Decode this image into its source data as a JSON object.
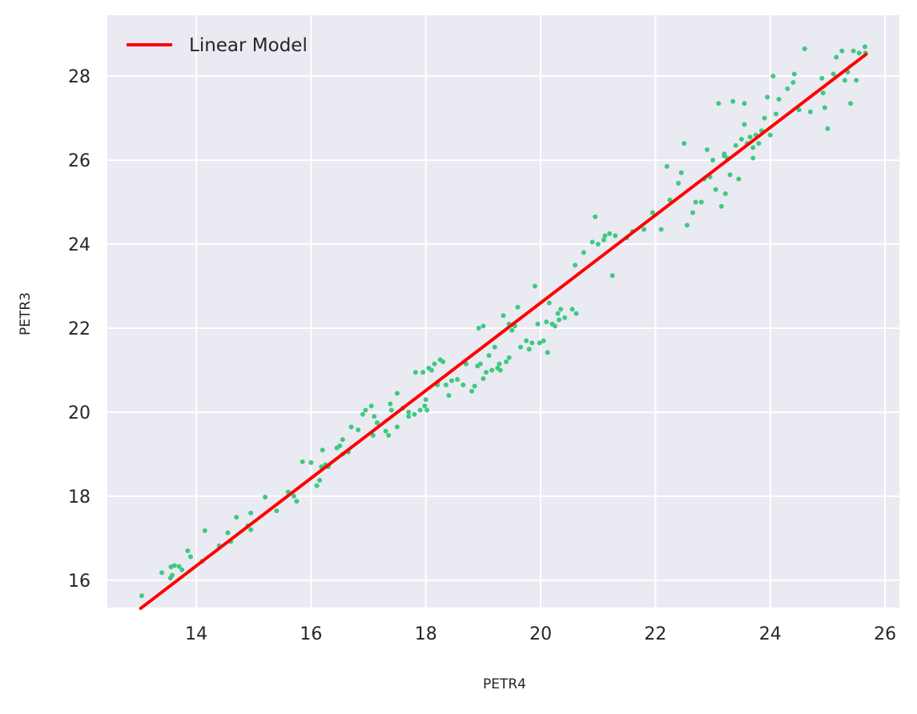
{
  "chart_data": {
    "type": "scatter",
    "xlabel": "PETR4",
    "ylabel": "PETR3",
    "xlim": [
      12.45,
      26.25
    ],
    "ylim": [
      15.35,
      29.45
    ],
    "xticks": [
      14,
      16,
      18,
      20,
      22,
      24,
      26
    ],
    "yticks": [
      16,
      18,
      20,
      22,
      24,
      26,
      28
    ],
    "grid": true,
    "legend_position": "top-left",
    "colors": {
      "background": "#eaeaf2",
      "grid": "#ffffff",
      "points": "#3ec982",
      "line": "#ff0000"
    },
    "line": {
      "name": "Linear Model",
      "x": [
        13.03,
        25.67
      ],
      "y": [
        15.33,
        28.52
      ]
    },
    "points": [
      [
        13.05,
        15.63
      ],
      [
        13.4,
        16.18
      ],
      [
        13.55,
        16.05
      ],
      [
        13.58,
        16.12
      ],
      [
        13.56,
        16.32
      ],
      [
        13.62,
        16.35
      ],
      [
        13.7,
        16.33
      ],
      [
        13.75,
        16.25
      ],
      [
        13.85,
        16.7
      ],
      [
        13.9,
        16.56
      ],
      [
        14.15,
        17.18
      ],
      [
        14.1,
        16.45
      ],
      [
        14.4,
        16.82
      ],
      [
        14.55,
        17.13
      ],
      [
        14.6,
        16.92
      ],
      [
        14.7,
        17.5
      ],
      [
        14.9,
        17.3
      ],
      [
        14.95,
        17.6
      ],
      [
        14.95,
        17.2
      ],
      [
        15.2,
        17.98
      ],
      [
        15.4,
        17.65
      ],
      [
        15.6,
        18.1
      ],
      [
        15.7,
        18.0
      ],
      [
        15.75,
        17.88
      ],
      [
        15.85,
        18.82
      ],
      [
        16.0,
        18.8
      ],
      [
        16.1,
        18.25
      ],
      [
        16.15,
        18.38
      ],
      [
        16.18,
        18.7
      ],
      [
        16.2,
        19.1
      ],
      [
        16.25,
        18.75
      ],
      [
        16.3,
        18.7
      ],
      [
        16.45,
        19.15
      ],
      [
        16.5,
        19.2
      ],
      [
        16.55,
        19.35
      ],
      [
        16.55,
        19.0
      ],
      [
        16.65,
        19.05
      ],
      [
        16.7,
        19.65
      ],
      [
        16.82,
        19.58
      ],
      [
        16.9,
        19.95
      ],
      [
        16.95,
        20.05
      ],
      [
        17.05,
        20.15
      ],
      [
        17.08,
        19.45
      ],
      [
        17.1,
        19.9
      ],
      [
        17.15,
        19.75
      ],
      [
        17.3,
        19.55
      ],
      [
        17.35,
        19.45
      ],
      [
        17.38,
        20.2
      ],
      [
        17.4,
        20.05
      ],
      [
        17.5,
        20.45
      ],
      [
        17.5,
        19.65
      ],
      [
        17.6,
        20.1
      ],
      [
        17.7,
        19.9
      ],
      [
        17.8,
        19.95
      ],
      [
        17.82,
        20.95
      ],
      [
        17.9,
        20.05
      ],
      [
        17.95,
        20.95
      ],
      [
        17.98,
        20.15
      ],
      [
        18.0,
        20.3
      ],
      [
        18.02,
        20.05
      ],
      [
        18.05,
        21.05
      ],
      [
        18.1,
        21.0
      ],
      [
        18.15,
        21.15
      ],
      [
        18.2,
        20.7
      ],
      [
        18.25,
        21.25
      ],
      [
        18.3,
        21.2
      ],
      [
        18.35,
        20.65
      ],
      [
        18.4,
        20.4
      ],
      [
        18.45,
        20.75
      ],
      [
        18.55,
        20.78
      ],
      [
        18.65,
        20.65
      ],
      [
        18.7,
        21.15
      ],
      [
        18.8,
        20.5
      ],
      [
        18.85,
        20.62
      ],
      [
        18.9,
        21.1
      ],
      [
        18.92,
        22.0
      ],
      [
        18.95,
        21.15
      ],
      [
        19.0,
        20.8
      ],
      [
        19.0,
        22.05
      ],
      [
        19.05,
        20.95
      ],
      [
        19.1,
        21.35
      ],
      [
        19.15,
        21.0
      ],
      [
        19.2,
        21.55
      ],
      [
        19.25,
        21.05
      ],
      [
        19.28,
        21.15
      ],
      [
        19.3,
        21.0
      ],
      [
        19.35,
        22.3
      ],
      [
        19.4,
        21.2
      ],
      [
        19.45,
        21.3
      ],
      [
        19.45,
        22.1
      ],
      [
        19.5,
        21.95
      ],
      [
        19.55,
        22.05
      ],
      [
        19.65,
        21.55
      ],
      [
        19.75,
        21.7
      ],
      [
        19.8,
        21.5
      ],
      [
        19.85,
        21.65
      ],
      [
        19.9,
        23.0
      ],
      [
        19.95,
        22.1
      ],
      [
        19.98,
        21.65
      ],
      [
        20.05,
        21.7
      ],
      [
        20.1,
        22.15
      ],
      [
        20.12,
        21.42
      ],
      [
        20.15,
        22.6
      ],
      [
        20.2,
        22.1
      ],
      [
        20.25,
        22.05
      ],
      [
        20.3,
        22.35
      ],
      [
        20.32,
        22.2
      ],
      [
        20.35,
        22.45
      ],
      [
        20.42,
        22.25
      ],
      [
        20.55,
        22.45
      ],
      [
        20.6,
        23.5
      ],
      [
        20.62,
        22.35
      ],
      [
        20.75,
        23.8
      ],
      [
        20.9,
        24.05
      ],
      [
        20.95,
        24.65
      ],
      [
        21.1,
        24.1
      ],
      [
        21.12,
        24.2
      ],
      [
        21.2,
        24.25
      ],
      [
        21.25,
        23.25
      ],
      [
        21.3,
        24.2
      ],
      [
        21.5,
        24.15
      ],
      [
        21.6,
        24.3
      ],
      [
        21.8,
        24.35
      ],
      [
        21.95,
        24.75
      ],
      [
        22.1,
        24.35
      ],
      [
        22.2,
        25.85
      ],
      [
        22.25,
        25.05
      ],
      [
        22.4,
        25.45
      ],
      [
        22.5,
        26.4
      ],
      [
        22.55,
        24.45
      ],
      [
        22.65,
        24.75
      ],
      [
        22.7,
        25.0
      ],
      [
        22.8,
        25.0
      ],
      [
        22.85,
        25.55
      ],
      [
        22.9,
        26.25
      ],
      [
        22.95,
        25.6
      ],
      [
        23.0,
        26.0
      ],
      [
        23.05,
        25.3
      ],
      [
        23.1,
        27.35
      ],
      [
        23.15,
        24.9
      ],
      [
        23.2,
        26.15
      ],
      [
        23.22,
        25.2
      ],
      [
        23.25,
        26.05
      ],
      [
        23.3,
        25.65
      ],
      [
        23.35,
        27.4
      ],
      [
        23.4,
        26.35
      ],
      [
        23.45,
        25.55
      ],
      [
        23.5,
        26.5
      ],
      [
        23.55,
        26.85
      ],
      [
        23.55,
        27.35
      ],
      [
        23.6,
        26.4
      ],
      [
        23.65,
        26.55
      ],
      [
        23.7,
        26.3
      ],
      [
        23.75,
        26.6
      ],
      [
        23.8,
        26.4
      ],
      [
        23.85,
        26.7
      ],
      [
        23.9,
        27.0
      ],
      [
        23.95,
        27.5
      ],
      [
        24.0,
        26.6
      ],
      [
        24.05,
        28.0
      ],
      [
        24.1,
        27.1
      ],
      [
        24.15,
        27.45
      ],
      [
        24.4,
        27.85
      ],
      [
        24.42,
        28.05
      ],
      [
        24.5,
        27.2
      ],
      [
        24.6,
        28.65
      ],
      [
        24.7,
        27.15
      ],
      [
        24.9,
        27.95
      ],
      [
        24.92,
        27.6
      ],
      [
        24.95,
        27.25
      ],
      [
        25.0,
        26.75
      ],
      [
        25.1,
        28.05
      ],
      [
        25.15,
        28.45
      ],
      [
        25.25,
        28.6
      ],
      [
        25.3,
        27.9
      ],
      [
        25.35,
        28.1
      ],
      [
        25.4,
        27.35
      ],
      [
        25.45,
        28.6
      ],
      [
        25.5,
        27.9
      ],
      [
        25.55,
        28.55
      ],
      [
        25.65,
        28.7
      ],
      [
        25.66,
        28.55
      ],
      [
        23.2,
        26.1
      ],
      [
        23.7,
        26.05
      ],
      [
        22.45,
        25.7
      ],
      [
        18.2,
        20.65
      ],
      [
        19.6,
        22.5
      ],
      [
        17.7,
        20.0
      ],
      [
        21.0,
        24.0
      ],
      [
        24.3,
        27.7
      ]
    ]
  }
}
